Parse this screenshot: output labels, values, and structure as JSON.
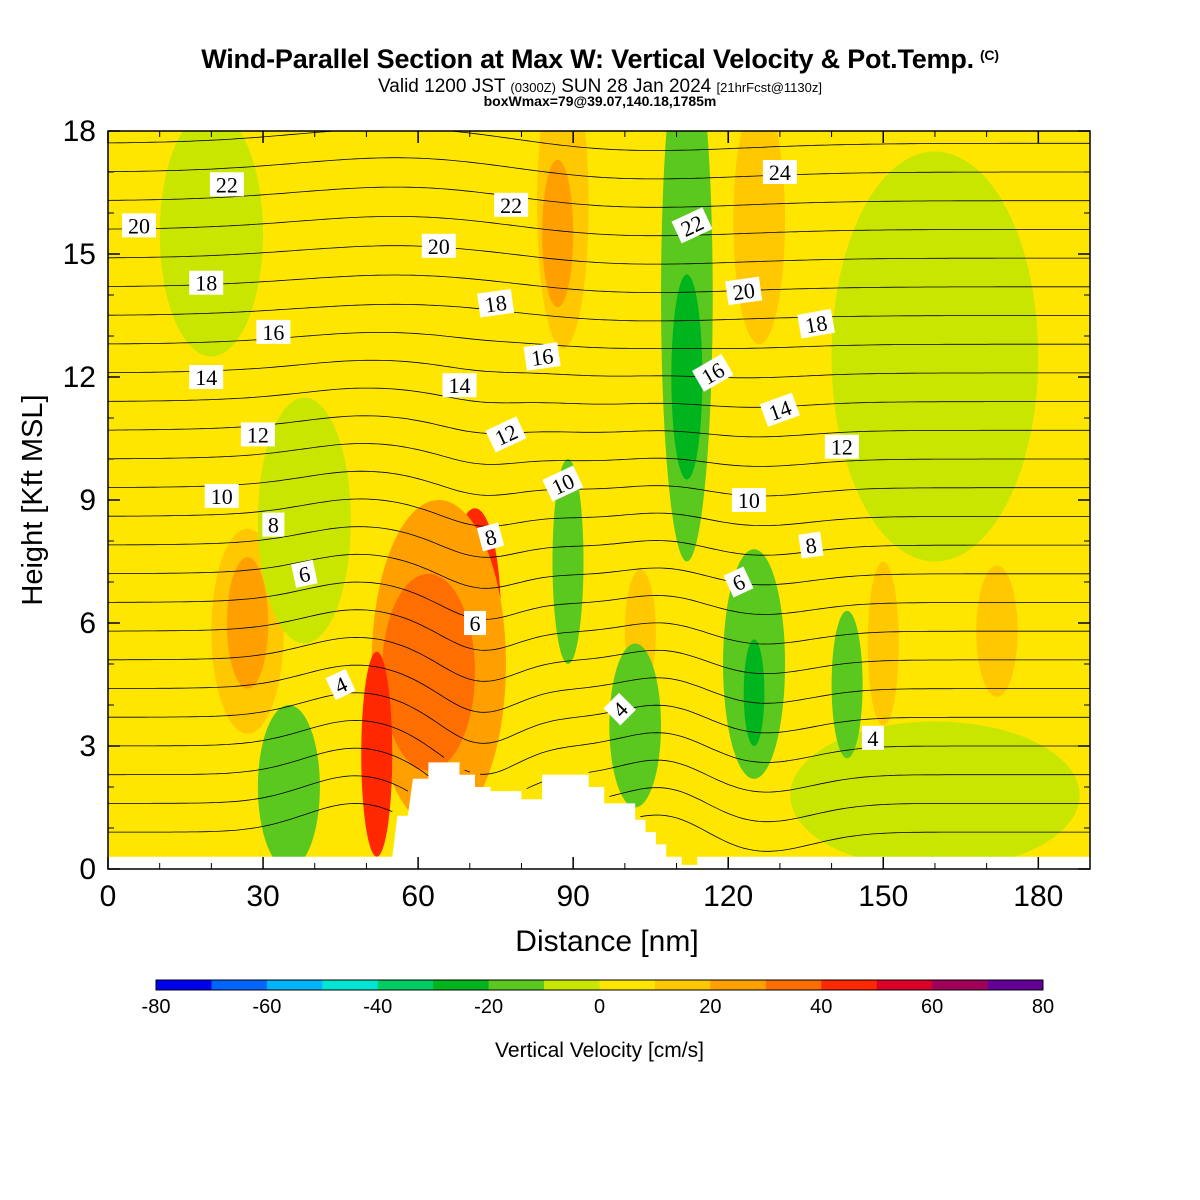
{
  "header": {
    "title": "Wind-Parallel Section at Max W: Vertical Velocity & Pot.Temp.",
    "title_mark": "(C)",
    "subtitle_valid": "Valid 1200 JST",
    "subtitle_z": "(0300Z)",
    "subtitle_date": "SUN 28 Jan 2024",
    "subtitle_fcst": "[21hrFcst@1130z]",
    "box_info": "boxWmax=79@39.07,140.18,1785m"
  },
  "chart_data": {
    "type": "heatmap",
    "xlabel": "Distance [nm]",
    "ylabel": "Height [Kft MSL]",
    "xlim": [
      0,
      190
    ],
    "ylim": [
      0,
      18
    ],
    "xticks": [
      0,
      30,
      60,
      90,
      120,
      150,
      180
    ],
    "yticks": [
      0,
      3,
      6,
      9,
      12,
      15,
      18
    ],
    "colorbar": {
      "label": "Vertical Velocity [cm/s]",
      "ticks": [
        -80,
        -60,
        -40,
        -20,
        0,
        20,
        40,
        60,
        80
      ],
      "levels": [
        -80,
        -70,
        -60,
        -50,
        -40,
        -30,
        -20,
        -10,
        0,
        10,
        20,
        30,
        40,
        50,
        60,
        70,
        80
      ],
      "colors": [
        "#0000ee",
        "#0064ff",
        "#00b4ff",
        "#00e6d2",
        "#00cc64",
        "#00b41e",
        "#5ac81e",
        "#c8e600",
        "#ffe600",
        "#ffc800",
        "#ffa000",
        "#ff6e00",
        "#ff2800",
        "#dc0028",
        "#a0005a",
        "#640096"
      ]
    },
    "background_w": 2,
    "w_features": [
      {
        "x": 71,
        "y": 6.2,
        "rx": 5,
        "ry": 2.6,
        "value": 45
      },
      {
        "x": 71,
        "y": 6.2,
        "rx": 3,
        "ry": 1.8,
        "value": 55
      },
      {
        "x": 71,
        "y": 6.2,
        "rx": 1.5,
        "ry": 1.1,
        "value": 65
      },
      {
        "x": 71,
        "y": 6.3,
        "rx": 0.7,
        "ry": 0.6,
        "value": 75
      },
      {
        "x": 64,
        "y": 5.0,
        "rx": 13,
        "ry": 4.0,
        "value": 25
      },
      {
        "x": 62,
        "y": 4.8,
        "rx": 9,
        "ry": 2.4,
        "value": 35
      },
      {
        "x": 52,
        "y": 2.8,
        "rx": 3,
        "ry": 2.5,
        "value": 40
      },
      {
        "x": 27,
        "y": 5.8,
        "rx": 7,
        "ry": 2.5,
        "value": 15
      },
      {
        "x": 27,
        "y": 6.0,
        "rx": 4,
        "ry": 1.6,
        "value": 22
      },
      {
        "x": 88,
        "y": 16.2,
        "rx": 5,
        "ry": 3.5,
        "value": 15
      },
      {
        "x": 87,
        "y": 15.5,
        "rx": 3,
        "ry": 1.8,
        "value": 22
      },
      {
        "x": 126,
        "y": 15.8,
        "rx": 5,
        "ry": 3.0,
        "value": 15
      },
      {
        "x": 103,
        "y": 5.8,
        "rx": 3,
        "ry": 1.5,
        "value": 15
      },
      {
        "x": 112,
        "y": 14.0,
        "rx": 5,
        "ry": 6.5,
        "value": -12
      },
      {
        "x": 112,
        "y": 12.0,
        "rx": 3,
        "ry": 2.5,
        "value": -22
      },
      {
        "x": 125,
        "y": 5.0,
        "rx": 6,
        "ry": 2.8,
        "value": -12
      },
      {
        "x": 125,
        "y": 4.3,
        "rx": 2,
        "ry": 1.3,
        "value": -22
      },
      {
        "x": 89,
        "y": 7.5,
        "rx": 3,
        "ry": 2.5,
        "value": -12
      },
      {
        "x": 102,
        "y": 3.5,
        "rx": 5,
        "ry": 2.0,
        "value": -12
      },
      {
        "x": 35,
        "y": 2.0,
        "rx": 6,
        "ry": 2.0,
        "value": -12
      },
      {
        "x": 38,
        "y": 8.5,
        "rx": 9,
        "ry": 3.0,
        "value": -5
      },
      {
        "x": 160,
        "y": 12.5,
        "rx": 20,
        "ry": 5.0,
        "value": -5
      },
      {
        "x": 160,
        "y": 1.8,
        "rx": 28,
        "ry": 1.8,
        "value": -5
      },
      {
        "x": 143,
        "y": 4.5,
        "rx": 3,
        "ry": 1.8,
        "value": -12
      },
      {
        "x": 20,
        "y": 15.5,
        "rx": 10,
        "ry": 3.0,
        "value": -5
      },
      {
        "x": 150,
        "y": 5.5,
        "rx": 3,
        "ry": 2.0,
        "value": 15
      },
      {
        "x": 172,
        "y": 5.8,
        "rx": 4,
        "ry": 1.6,
        "value": 15
      }
    ],
    "terrain": [
      [
        0,
        0.3
      ],
      [
        10,
        0.3
      ],
      [
        20,
        0.3
      ],
      [
        30,
        0.3
      ],
      [
        40,
        0.3
      ],
      [
        50,
        0.3
      ],
      [
        55,
        0.3
      ],
      [
        56,
        1.3
      ],
      [
        58,
        1.3
      ],
      [
        59,
        2.2
      ],
      [
        62,
        2.2
      ],
      [
        62,
        2.6
      ],
      [
        68,
        2.6
      ],
      [
        68,
        2.3
      ],
      [
        71,
        2.3
      ],
      [
        71,
        2.0
      ],
      [
        74,
        2.0
      ],
      [
        74,
        1.9
      ],
      [
        80,
        1.9
      ],
      [
        80,
        1.7
      ],
      [
        84,
        1.7
      ],
      [
        84,
        2.3
      ],
      [
        93,
        2.3
      ],
      [
        93,
        2.0
      ],
      [
        96,
        2.0
      ],
      [
        96,
        1.6
      ],
      [
        102,
        1.6
      ],
      [
        102,
        1.2
      ],
      [
        104,
        1.2
      ],
      [
        104,
        0.9
      ],
      [
        106,
        0.9
      ],
      [
        106,
        0.6
      ],
      [
        108,
        0.6
      ],
      [
        108,
        0.3
      ],
      [
        111,
        0.3
      ],
      [
        111,
        0.1
      ],
      [
        114,
        0.1
      ],
      [
        114,
        0.3
      ],
      [
        190,
        0.3
      ]
    ],
    "theta_contours": {
      "levels": [
        0,
        1,
        2,
        3,
        4,
        5,
        6,
        7,
        8,
        9,
        10,
        11,
        12,
        13,
        14,
        15,
        16,
        17,
        18,
        19,
        20,
        21,
        22,
        23,
        24
      ],
      "labels": [
        {
          "text": "22",
          "x": 23,
          "y": 16.7,
          "angle": 0
        },
        {
          "text": "20",
          "x": 6,
          "y": 15.7,
          "angle": 0
        },
        {
          "text": "18",
          "x": 19,
          "y": 14.3,
          "angle": 0
        },
        {
          "text": "16",
          "x": 32,
          "y": 13.1,
          "angle": 0
        },
        {
          "text": "14",
          "x": 19,
          "y": 12.0,
          "angle": 0
        },
        {
          "text": "12",
          "x": 29,
          "y": 10.6,
          "angle": 0
        },
        {
          "text": "10",
          "x": 22,
          "y": 9.1,
          "angle": 0
        },
        {
          "text": "8",
          "x": 32,
          "y": 8.4,
          "angle": 0
        },
        {
          "text": "6",
          "x": 38,
          "y": 7.2,
          "angle": -12
        },
        {
          "text": "4",
          "x": 45,
          "y": 4.5,
          "angle": -25
        },
        {
          "text": "22",
          "x": 78,
          "y": 16.2,
          "angle": 0
        },
        {
          "text": "20",
          "x": 64,
          "y": 15.2,
          "angle": 0
        },
        {
          "text": "18",
          "x": 75,
          "y": 13.8,
          "angle": -8
        },
        {
          "text": "16",
          "x": 84,
          "y": 12.5,
          "angle": -8
        },
        {
          "text": "14",
          "x": 68,
          "y": 11.8,
          "angle": 0
        },
        {
          "text": "12",
          "x": 77,
          "y": 10.6,
          "angle": -25
        },
        {
          "text": "10",
          "x": 88,
          "y": 9.4,
          "angle": -25
        },
        {
          "text": "8",
          "x": 74,
          "y": 8.1,
          "angle": -15
        },
        {
          "text": "6",
          "x": 71,
          "y": 6.0,
          "angle": 0
        },
        {
          "text": "4",
          "x": 99,
          "y": 3.9,
          "angle": -45
        },
        {
          "text": "22",
          "x": 113,
          "y": 15.7,
          "angle": -25
        },
        {
          "text": "24",
          "x": 130,
          "y": 17.0,
          "angle": 0
        },
        {
          "text": "20",
          "x": 123,
          "y": 14.1,
          "angle": -8
        },
        {
          "text": "18",
          "x": 137,
          "y": 13.3,
          "angle": -10
        },
        {
          "text": "16",
          "x": 117,
          "y": 12.1,
          "angle": -30
        },
        {
          "text": "14",
          "x": 130,
          "y": 11.2,
          "angle": -20
        },
        {
          "text": "12",
          "x": 142,
          "y": 10.3,
          "angle": 0
        },
        {
          "text": "10",
          "x": 124,
          "y": 9.0,
          "angle": 0
        },
        {
          "text": "8",
          "x": 136,
          "y": 7.9,
          "angle": -8
        },
        {
          "text": "6",
          "x": 122,
          "y": 7.0,
          "angle": -25
        },
        {
          "text": "4",
          "x": 148,
          "y": 3.2,
          "angle": 0
        }
      ]
    }
  }
}
